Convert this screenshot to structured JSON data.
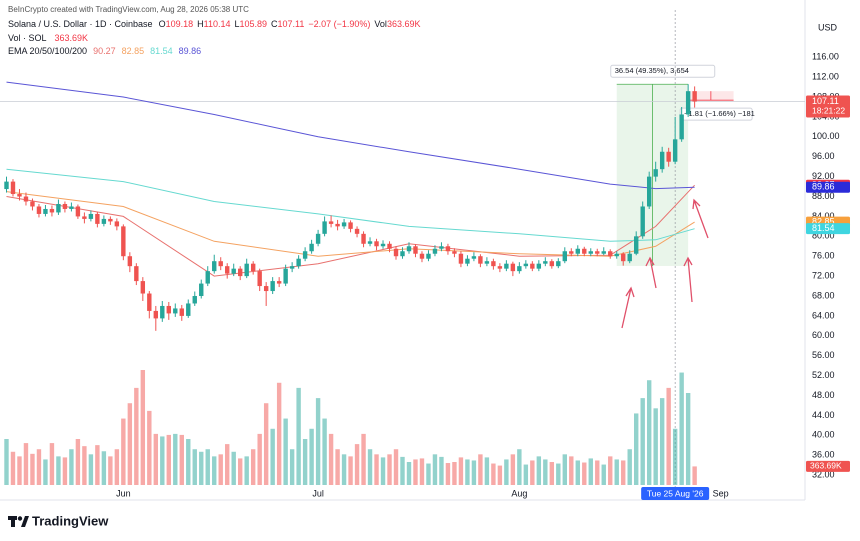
{
  "header": {
    "credit": "BeInCrypto created with TradingView.com, Aug 28, 2026 05:38 UTC",
    "symbol": "Solana / U.S. Dollar · 1D · Coinbase",
    "keys": [
      "O",
      "H",
      "L",
      "C"
    ],
    "change": "−2.07 (−1.90%)",
    "vol_key": "Vol",
    "volume_legend": "Vol · SOL",
    "indicator_legend": "EMA 20/50/100/200"
  },
  "brand": "TradingView",
  "chart_data": {
    "type": "candlestick",
    "currency": "USD",
    "up_color": "#26a69a",
    "down_color": "#ef5350",
    "xlim": [
      "2026-05-13",
      "2026-09-14"
    ],
    "xticks": [
      {
        "value": "2026-06-01",
        "label": "Jun"
      },
      {
        "value": "2026-07-01",
        "label": "Jul"
      },
      {
        "value": "2026-08-01",
        "label": "Aug"
      },
      {
        "value": "2026-09-01",
        "label": "Sep"
      }
    ],
    "ylim": [
      29,
      125.5
    ],
    "yticks": [
      {
        "value": 32,
        "label": "32.00"
      },
      {
        "value": 36,
        "label": "36.00"
      },
      {
        "value": 40,
        "label": "40.00"
      },
      {
        "value": 44,
        "label": "44.00"
      },
      {
        "value": 48,
        "label": "48.00"
      },
      {
        "value": 52,
        "label": "52.00"
      },
      {
        "value": 56,
        "label": "56.00"
      },
      {
        "value": 60,
        "label": "60.00"
      },
      {
        "value": 64,
        "label": "64.00"
      },
      {
        "value": 68,
        "label": "68.00"
      },
      {
        "value": 72,
        "label": "72.00"
      },
      {
        "value": 76,
        "label": "76.00"
      },
      {
        "value": 80,
        "label": "80.00"
      },
      {
        "value": 84,
        "label": "84.00"
      },
      {
        "value": 88,
        "label": "88.00"
      },
      {
        "value": 92,
        "label": "92.00"
      },
      {
        "value": 96,
        "label": "96.00"
      },
      {
        "value": 100,
        "label": "100.00"
      },
      {
        "value": 104,
        "label": "104.00"
      },
      {
        "value": 108,
        "label": "108.00"
      },
      {
        "value": 112,
        "label": "112.00"
      },
      {
        "value": 116,
        "label": "116.00"
      }
    ],
    "grid": false,
    "x": [
      "2026-05-14",
      "2026-05-15",
      "2026-05-16",
      "2026-05-17",
      "2026-05-18",
      "2026-05-19",
      "2026-05-20",
      "2026-05-21",
      "2026-05-22",
      "2026-05-23",
      "2026-05-24",
      "2026-05-25",
      "2026-05-26",
      "2026-05-27",
      "2026-05-28",
      "2026-05-29",
      "2026-05-30",
      "2026-05-31",
      "2026-06-01",
      "2026-06-02",
      "2026-06-03",
      "2026-06-04",
      "2026-06-05",
      "2026-06-06",
      "2026-06-07",
      "2026-06-08",
      "2026-06-09",
      "2026-06-10",
      "2026-06-11",
      "2026-06-12",
      "2026-06-13",
      "2026-06-14",
      "2026-06-15",
      "2026-06-16",
      "2026-06-17",
      "2026-06-18",
      "2026-06-19",
      "2026-06-20",
      "2026-06-21",
      "2026-06-22",
      "2026-06-23",
      "2026-06-24",
      "2026-06-25",
      "2026-06-26",
      "2026-06-27",
      "2026-06-28",
      "2026-06-29",
      "2026-06-30",
      "2026-07-01",
      "2026-07-02",
      "2026-07-03",
      "2026-07-04",
      "2026-07-05",
      "2026-07-06",
      "2026-07-07",
      "2026-07-08",
      "2026-07-09",
      "2026-07-10",
      "2026-07-11",
      "2026-07-12",
      "2026-07-13",
      "2026-07-14",
      "2026-07-15",
      "2026-07-16",
      "2026-07-17",
      "2026-07-18",
      "2026-07-19",
      "2026-07-20",
      "2026-07-21",
      "2026-07-22",
      "2026-07-23",
      "2026-07-24",
      "2026-07-25",
      "2026-07-26",
      "2026-07-27",
      "2026-07-28",
      "2026-07-29",
      "2026-07-30",
      "2026-07-31",
      "2026-08-01",
      "2026-08-02",
      "2026-08-03",
      "2026-08-04",
      "2026-08-05",
      "2026-08-06",
      "2026-08-07",
      "2026-08-08",
      "2026-08-09",
      "2026-08-10",
      "2026-08-11",
      "2026-08-12",
      "2026-08-13",
      "2026-08-14",
      "2026-08-15",
      "2026-08-16",
      "2026-08-17",
      "2026-08-18",
      "2026-08-19",
      "2026-08-20",
      "2026-08-21",
      "2026-08-22",
      "2026-08-23",
      "2026-08-24",
      "2026-08-25",
      "2026-08-26",
      "2026-08-27",
      "2026-08-28"
    ],
    "open": [
      89.5,
      91.0,
      88.5,
      88.0,
      87.0,
      86.0,
      84.5,
      85.5,
      84.8,
      86.5,
      85.5,
      86.0,
      84.0,
      83.5,
      84.5,
      82.5,
      83.5,
      83.0,
      82.0,
      76.0,
      74.0,
      71.0,
      68.5,
      65.0,
      63.5,
      66.0,
      64.5,
      65.5,
      64.0,
      66.5,
      68.0,
      70.5,
      73.0,
      75.0,
      74.0,
      72.5,
      73.5,
      72.0,
      74.5,
      73.0,
      70.0,
      69.0,
      71.0,
      70.5,
      73.5,
      74.0,
      75.5,
      77.0,
      78.5,
      80.5,
      83.0,
      82.5,
      82.0,
      82.8,
      81.5,
      80.5,
      78.5,
      79.0,
      78.0,
      78.5,
      77.5,
      76.0,
      77.0,
      78.0,
      76.5,
      75.5,
      76.5,
      77.5,
      78.0,
      77.0,
      76.5,
      74.5,
      75.5,
      76.0,
      74.5,
      75.0,
      74.0,
      73.5,
      74.5,
      73.0,
      74.0,
      74.5,
      73.5,
      74.5,
      75.0,
      74.0,
      75.0,
      77.0,
      76.5,
      77.5,
      76.5,
      77.0,
      76.5,
      77.0,
      76.0,
      76.5,
      75.0,
      76.5,
      80.0,
      86.0,
      92.0,
      93.5,
      97.0,
      95.0,
      99.5,
      104.5,
      109.18
    ],
    "high": [
      92.0,
      91.5,
      89.5,
      88.8,
      87.6,
      86.5,
      86.3,
      86.2,
      87.4,
      87.0,
      86.8,
      86.4,
      84.8,
      85.2,
      84.9,
      84.2,
      84.0,
      83.6,
      82.4,
      76.8,
      74.6,
      71.8,
      69.0,
      66.0,
      67.0,
      66.8,
      66.5,
      66.2,
      67.3,
      68.9,
      71.3,
      74.0,
      76.3,
      75.8,
      74.6,
      74.5,
      74.0,
      75.5,
      75.0,
      73.5,
      70.8,
      71.8,
      71.8,
      74.3,
      74.8,
      76.2,
      77.8,
      79.3,
      81.3,
      84.0,
      84.2,
      83.3,
      83.5,
      83.2,
      82.0,
      81.0,
      79.8,
      79.5,
      79.2,
      79.0,
      78.0,
      77.8,
      78.8,
      78.4,
      77.0,
      77.2,
      78.2,
      78.8,
      78.5,
      77.6,
      77.0,
      76.2,
      76.8,
      76.4,
      75.8,
      75.5,
      74.6,
      75.2,
      74.9,
      74.8,
      75.2,
      75.0,
      75.2,
      75.8,
      75.4,
      75.6,
      77.8,
      77.6,
      78.2,
      77.9,
      77.6,
      77.5,
      77.8,
      77.4,
      77.0,
      76.8,
      77.2,
      81.0,
      87.0,
      93.0,
      95.0,
      98.0,
      97.8,
      104.0,
      106.0,
      110.58,
      110.14
    ],
    "low": [
      88.8,
      88.0,
      87.2,
      86.2,
      85.2,
      83.8,
      84.0,
      84.0,
      84.3,
      84.8,
      85.0,
      83.5,
      82.6,
      83.0,
      81.8,
      82.0,
      82.3,
      81.2,
      75.2,
      72.8,
      70.2,
      67.0,
      63.5,
      61.0,
      62.8,
      63.2,
      63.8,
      63.0,
      63.6,
      66.0,
      67.5,
      70.0,
      72.5,
      73.2,
      71.5,
      72.0,
      71.2,
      71.6,
      72.3,
      69.0,
      66.0,
      68.4,
      69.8,
      70.0,
      72.8,
      73.5,
      75.0,
      76.5,
      78.0,
      80.0,
      81.8,
      81.2,
      81.5,
      80.8,
      79.8,
      77.8,
      78.0,
      77.2,
      77.5,
      76.8,
      75.3,
      75.5,
      76.5,
      75.8,
      74.8,
      75.0,
      76.0,
      77.0,
      76.3,
      75.8,
      73.8,
      74.0,
      75.0,
      73.8,
      74.0,
      73.3,
      72.8,
      73.0,
      72.0,
      72.5,
      73.5,
      73.0,
      73.0,
      74.0,
      73.5,
      73.6,
      74.6,
      76.0,
      76.0,
      76.0,
      76.0,
      76.0,
      76.2,
      75.5,
      75.5,
      74.1,
      74.6,
      76.2,
      79.5,
      85.5,
      91.0,
      92.8,
      94.0,
      94.5,
      99.0,
      104.0,
      105.89
    ],
    "close": [
      91.0,
      88.5,
      88.0,
      87.0,
      86.0,
      84.5,
      85.5,
      84.8,
      86.5,
      85.5,
      86.0,
      84.0,
      83.5,
      84.5,
      82.5,
      83.5,
      83.0,
      82.0,
      76.0,
      74.0,
      71.0,
      68.5,
      65.0,
      63.5,
      66.0,
      64.5,
      65.5,
      64.0,
      66.5,
      68.0,
      70.5,
      73.0,
      75.0,
      74.0,
      72.5,
      73.5,
      72.0,
      74.5,
      73.0,
      70.0,
      69.0,
      71.0,
      70.5,
      73.5,
      74.0,
      75.5,
      77.0,
      78.5,
      80.5,
      83.0,
      82.5,
      82.0,
      82.8,
      81.5,
      80.5,
      78.5,
      79.0,
      78.0,
      78.5,
      77.5,
      76.0,
      77.0,
      78.0,
      76.5,
      75.5,
      76.5,
      77.5,
      78.0,
      77.0,
      76.5,
      74.5,
      75.5,
      76.0,
      74.5,
      75.0,
      74.0,
      73.5,
      74.5,
      73.0,
      74.0,
      74.5,
      73.5,
      74.5,
      75.0,
      74.0,
      75.0,
      77.0,
      76.5,
      77.5,
      76.5,
      77.0,
      76.5,
      77.0,
      76.0,
      76.5,
      75.0,
      76.5,
      80.0,
      86.0,
      92.0,
      93.5,
      97.0,
      95.0,
      99.5,
      104.5,
      109.18,
      107.11
    ],
    "volume": [
      900000,
      650000,
      560000,
      820000,
      610000,
      700000,
      500000,
      820000,
      560000,
      540000,
      700000,
      900000,
      760000,
      600000,
      780000,
      660000,
      560000,
      700000,
      1300000,
      1600000,
      1900000,
      2250000,
      1450000,
      1000000,
      950000,
      980000,
      1000000,
      980000,
      900000,
      700000,
      650000,
      700000,
      560000,
      600000,
      800000,
      650000,
      520000,
      560000,
      700000,
      1000000,
      1600000,
      1100000,
      2000000,
      1300000,
      700000,
      1900000,
      900000,
      1100000,
      1700000,
      1300000,
      1000000,
      700000,
      600000,
      560000,
      800000,
      1000000,
      700000,
      600000,
      540000,
      600000,
      700000,
      550000,
      450000,
      500000,
      520000,
      420000,
      600000,
      550000,
      430000,
      450000,
      540000,
      500000,
      480000,
      600000,
      540000,
      420000,
      380000,
      500000,
      600000,
      700000,
      400000,
      480000,
      560000,
      500000,
      450000,
      420000,
      600000,
      560000,
      480000,
      440000,
      520000,
      480000,
      400000,
      560000,
      500000,
      480000,
      700000,
      1400000,
      1700000,
      2050000,
      1500000,
      1700000,
      1900000,
      1100000,
      2200000,
      1800000,
      363690
    ],
    "volume_label": "363.69K",
    "countdown": "18:21:22",
    "series": [
      {
        "color": "#e8716e",
        "x": [
          "2026-05-14",
          "2026-06-01",
          "2026-06-15",
          "2026-07-01",
          "2026-07-15",
          "2026-08-01",
          "2026-08-15",
          "2026-08-22",
          "2026-08-28"
        ],
        "values": [
          88,
          84,
          72,
          74.5,
          78.5,
          76,
          76.2,
          82,
          90.27
        ]
      },
      {
        "color": "#f4a261",
        "x": [
          "2026-05-14",
          "2026-06-01",
          "2026-06-15",
          "2026-07-01",
          "2026-07-15",
          "2026-08-01",
          "2026-08-15",
          "2026-08-22",
          "2026-08-28"
        ],
        "values": [
          89,
          86,
          79,
          76,
          77.5,
          76.5,
          76,
          78,
          82.85
        ]
      },
      {
        "color": "#66d9d0",
        "x": [
          "2026-05-14",
          "2026-06-01",
          "2026-06-15",
          "2026-07-01",
          "2026-07-15",
          "2026-08-01",
          "2026-08-15",
          "2026-08-22",
          "2026-08-28"
        ],
        "values": [
          93.5,
          91,
          87,
          84.5,
          82,
          80.5,
          79,
          79.3,
          81.54
        ]
      },
      {
        "color": "#5a55d6",
        "x": [
          "2026-05-14",
          "2026-06-01",
          "2026-06-15",
          "2026-07-01",
          "2026-07-15",
          "2026-08-01",
          "2026-08-15",
          "2026-08-22",
          "2026-08-28"
        ],
        "values": [
          111,
          108,
          104.5,
          100,
          97,
          93.5,
          90.5,
          89.6,
          89.86
        ]
      }
    ],
    "measures": [
      {
        "label": "36.54 (49.35%), 3,654",
        "start": "2026-08-16",
        "end": "2026-08-27",
        "from": 74.04,
        "to": 110.58,
        "color": "#4caf50"
      },
      {
        "label": "−1.81 (−1.66%) −181",
        "start": "2026-08-27",
        "end": "2026-09-03",
        "from": 109.18,
        "to": 107.37,
        "color": "#f23645"
      }
    ],
    "crosshair": {
      "x": "2026-08-25",
      "label": "Tue 25 Aug '26"
    }
  }
}
